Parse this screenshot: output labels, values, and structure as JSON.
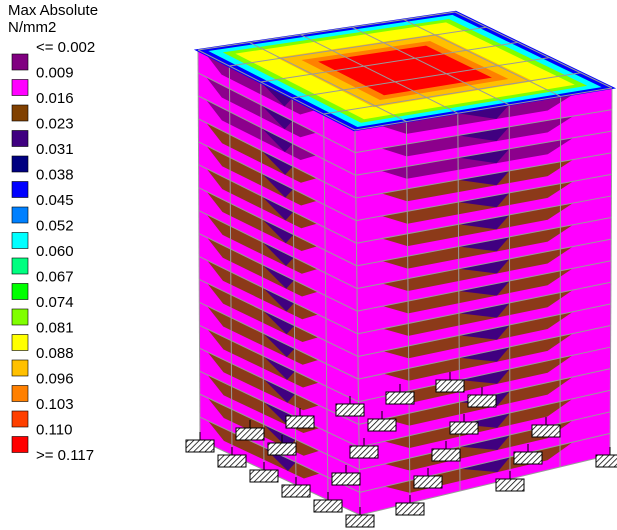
{
  "legend": {
    "title": "Max Absolute",
    "unit": "N/mm2",
    "labels": [
      "<= 0.002",
      "0.009",
      "0.016",
      "0.023",
      "0.031",
      "0.038",
      "0.045",
      "0.052",
      "0.060",
      "0.067",
      "0.074",
      "0.081",
      "0.088",
      "0.096",
      "0.103",
      "0.110",
      ">= 0.117"
    ],
    "colors": [
      "#800080",
      "#ff00ff",
      "#804000",
      "#400080",
      "#000080",
      "#0000ff",
      "#0080ff",
      "#00ffff",
      "#00ff80",
      "#00ff00",
      "#80ff00",
      "#ffff00",
      "#ffc000",
      "#ff8000",
      "#ff4000",
      "#ff0000"
    ]
  }
}
